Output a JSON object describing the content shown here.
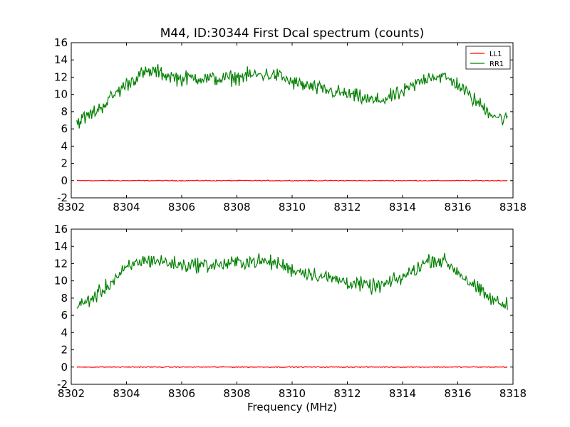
{
  "chart_data": {
    "title": "M44, ID:30344 First Dcal spectrum (counts)",
    "xlabel": "Frequency (MHz)",
    "legend": {
      "placement": "top-right",
      "entries": [
        "LL1",
        "RR1"
      ]
    },
    "colors": {
      "LL1": "#ff0000",
      "RR1": "#008000"
    },
    "panels": [
      {
        "type": "line",
        "xlim": [
          8302,
          8318
        ],
        "ylim": [
          -2,
          16
        ],
        "xticks": [
          8302,
          8304,
          8306,
          8308,
          8310,
          8312,
          8314,
          8316,
          8318
        ],
        "yticks": [
          -2,
          0,
          2,
          4,
          6,
          8,
          10,
          12,
          14,
          16
        ],
        "legend": true,
        "series": [
          {
            "name": "LL1",
            "x": [
              8302.2,
              8317.8
            ],
            "y": [
              0.0,
              0.0
            ]
          },
          {
            "name": "RR1",
            "x": [
              8302.2,
              8302.5,
              8303.0,
              8303.5,
              8304.0,
              8304.5,
              8305.0,
              8305.5,
              8306.0,
              8306.5,
              8307.0,
              8307.5,
              8308.0,
              8308.5,
              8309.0,
              8309.5,
              8310.0,
              8310.5,
              8311.0,
              8311.5,
              8312.0,
              8312.5,
              8313.0,
              8313.5,
              8314.0,
              8314.5,
              8315.0,
              8315.5,
              8316.0,
              8316.5,
              8317.0,
              8317.5,
              8317.8
            ],
            "y": [
              6.8,
              7.3,
              8.3,
              9.8,
              11.2,
              12.3,
              12.7,
              12.2,
              11.8,
              12.0,
              11.8,
              11.8,
              12.0,
              12.2,
              12.3,
              12.2,
              11.4,
              11.0,
              10.6,
              10.3,
              10.0,
              9.6,
              9.2,
              9.6,
              10.2,
              11.2,
              12.2,
              12.0,
              11.2,
              9.6,
              8.3,
              7.3,
              7.1
            ]
          }
        ]
      },
      {
        "type": "line",
        "xlim": [
          8302,
          8318
        ],
        "ylim": [
          -2,
          16
        ],
        "xticks": [
          8302,
          8304,
          8306,
          8308,
          8310,
          8312,
          8314,
          8316,
          8318
        ],
        "yticks": [
          -2,
          0,
          2,
          4,
          6,
          8,
          10,
          12,
          14,
          16
        ],
        "legend": false,
        "series": [
          {
            "name": "LL1",
            "x": [
              8302.2,
              8317.8
            ],
            "y": [
              0.0,
              0.0
            ]
          },
          {
            "name": "RR1",
            "x": [
              8302.2,
              8302.5,
              8303.0,
              8303.5,
              8304.0,
              8304.5,
              8305.0,
              8305.5,
              8306.0,
              8306.5,
              8307.0,
              8307.5,
              8308.0,
              8308.5,
              8309.0,
              8309.5,
              8310.0,
              8310.5,
              8311.0,
              8311.5,
              8312.0,
              8312.5,
              8313.0,
              8313.5,
              8314.0,
              8314.5,
              8315.0,
              8315.5,
              8316.0,
              8316.5,
              8317.0,
              8317.5,
              8317.8
            ],
            "y": [
              6.9,
              7.5,
              8.5,
              10.0,
              11.4,
              12.3,
              12.4,
              12.1,
              11.8,
              11.9,
              11.8,
              11.9,
              12.1,
              12.3,
              12.2,
              12.0,
              11.3,
              11.0,
              10.6,
              10.2,
              9.9,
              9.5,
              9.3,
              9.7,
              10.4,
              11.4,
              12.5,
              12.3,
              11.1,
              9.6,
              8.3,
              7.4,
              7.2
            ]
          }
        ]
      }
    ]
  }
}
